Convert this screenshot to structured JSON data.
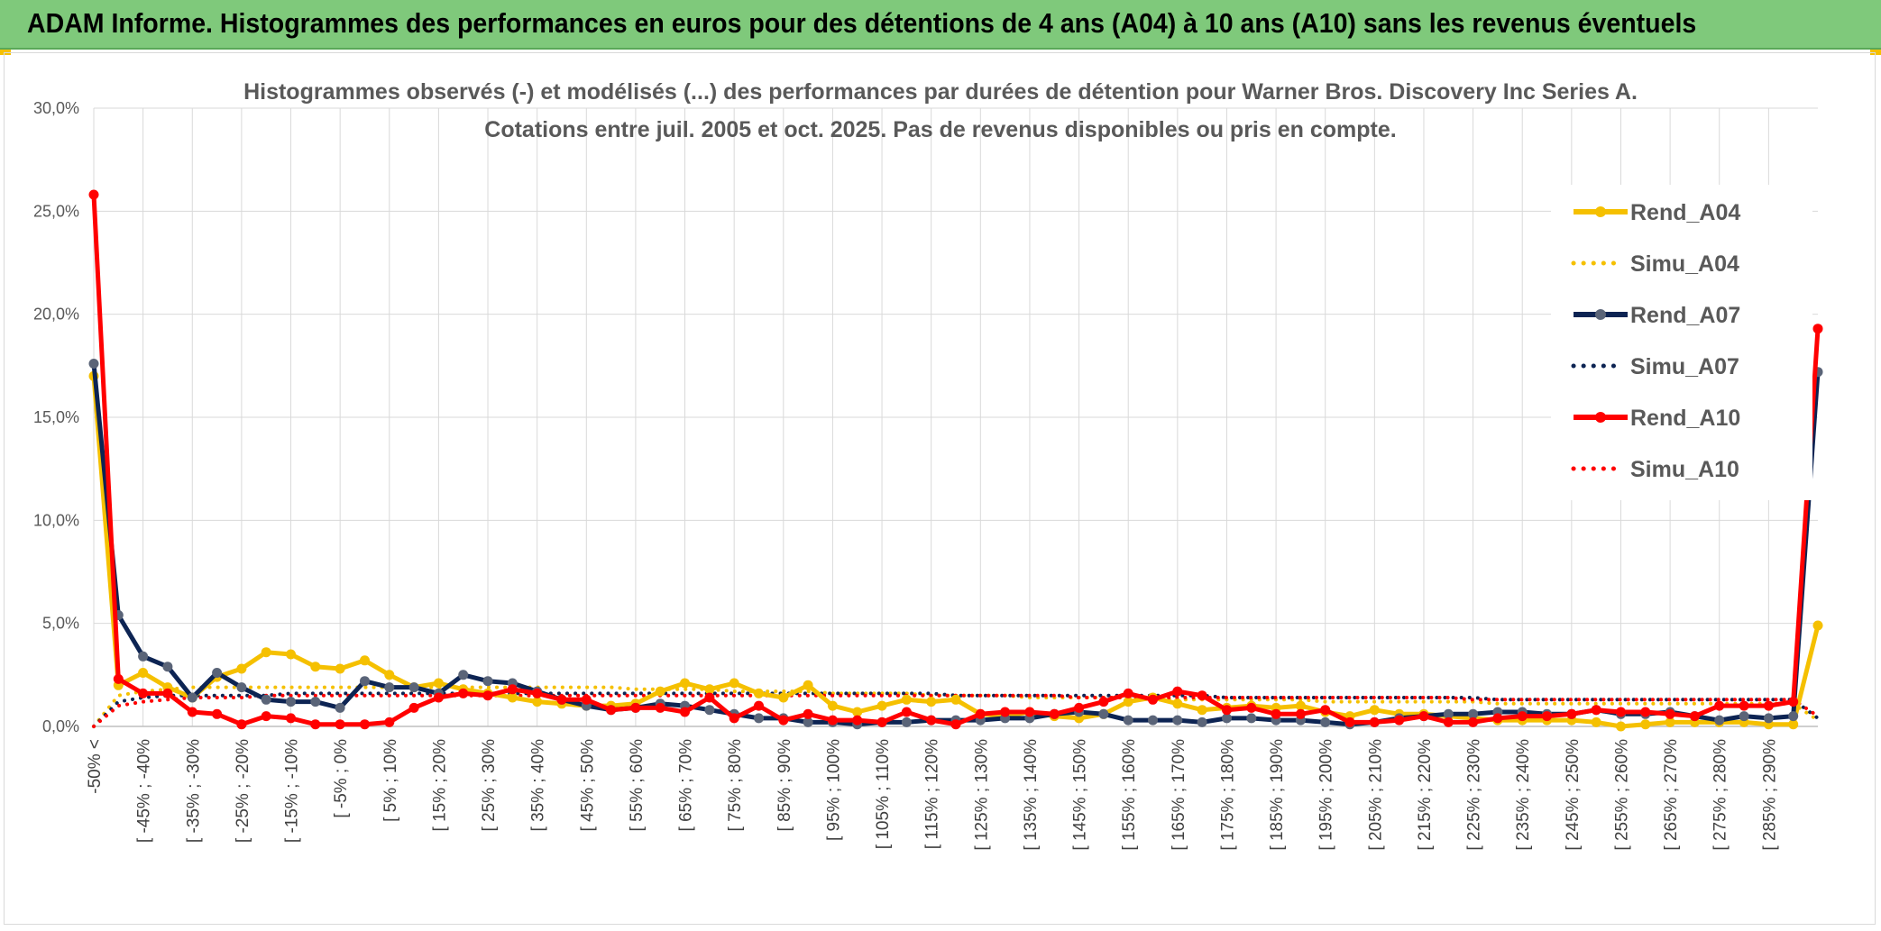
{
  "header": {
    "title": "ADAM Informe. Histogrammes des performances en euros pour des détentions de 4 ans (A04) à 10 ans (A10) sans les revenus éventuels"
  },
  "chart_data": {
    "type": "line",
    "title_line1": "Histogrammes observés (-) et modélisés (...) des performances par durées de détention pour Warner Bros. Discovery Inc Series A.",
    "title_line2": "Cotations entre juil. 2005 et oct. 2025. Pas de revenus disponibles ou pris en compte.",
    "ylim": [
      0,
      30
    ],
    "y_ticks": [
      "0,0%",
      "5,0%",
      "10,0%",
      "15,0%",
      "20,0%",
      "25,0%",
      "30,0%"
    ],
    "x_tick_labels": [
      "-50% <",
      "[ -45% ; -40%",
      "[ -35% ; -30%",
      "[ -25% ; -20%",
      "[ -15% ; -10%",
      "[ -5% ; 0%",
      "[ 5% ; 10%",
      "[ 15% ; 20%",
      "[ 25% ; 30%",
      "[ 35% ; 40%",
      "[ 45% ; 50%",
      "[ 55% ; 60%",
      "[ 65% ; 70%",
      "[ 75% ; 80%",
      "[ 85% ; 90%",
      "[ 95% ; 100%",
      "[ 105% ; 110%",
      "[ 115% ; 120%",
      "[ 125% ; 130%",
      "[ 135% ; 140%",
      "[ 145% ; 150%",
      "[ 155% ; 160%",
      "[ 165% ; 170%",
      "[ 175% ; 180%",
      "[ 185% ; 190%",
      "[ 195% ; 200%",
      "[ 205% ; 210%",
      "[ 215% ; 220%",
      "[ 225% ; 230%",
      "[ 235% ; 240%",
      "[ 245% ; 250%",
      "[ 255% ; 260%",
      "[ 265% ; 270%",
      "[ 275% ; 280%",
      "[ 285% ; 290%"
    ],
    "grid": true,
    "legend_position": "right",
    "series": [
      {
        "name": "Rend_A04",
        "style": "solid",
        "color": "#f5c000",
        "values": [
          17.0,
          2.0,
          2.6,
          1.9,
          1.4,
          2.4,
          2.8,
          3.6,
          3.5,
          2.9,
          2.8,
          3.2,
          2.5,
          1.9,
          2.1,
          1.8,
          1.6,
          1.4,
          1.2,
          1.1,
          1.0,
          1.0,
          1.1,
          1.7,
          2.1,
          1.8,
          2.1,
          1.6,
          1.4,
          2.0,
          1.0,
          0.7,
          1.0,
          1.3,
          1.2,
          1.3,
          0.6,
          0.5,
          0.7,
          0.5,
          0.4,
          0.6,
          1.2,
          1.4,
          1.1,
          0.8,
          0.9,
          1.0,
          0.9,
          1.0,
          0.7,
          0.5,
          0.8,
          0.6,
          0.6,
          0.5,
          0.4,
          0.3,
          0.3,
          0.3,
          0.3,
          0.2,
          0.0,
          0.1,
          0.2,
          0.2,
          0.2,
          0.2,
          0.1,
          0.1,
          4.9
        ]
      },
      {
        "name": "Simu_A04",
        "style": "dotted",
        "color": "#f5c000",
        "values": [
          0.0,
          1.5,
          1.7,
          1.8,
          1.9,
          1.9,
          1.9,
          1.9,
          1.9,
          1.9,
          1.9,
          1.9,
          1.9,
          1.9,
          1.9,
          1.9,
          1.9,
          1.9,
          1.9,
          1.9,
          1.9,
          1.9,
          1.8,
          1.8,
          1.8,
          1.8,
          1.7,
          1.7,
          1.7,
          1.7,
          1.6,
          1.6,
          1.6,
          1.6,
          1.5,
          1.5,
          1.5,
          1.5,
          1.4,
          1.4,
          1.4,
          1.4,
          1.4,
          1.3,
          1.3,
          1.3,
          1.3,
          1.3,
          1.3,
          1.3,
          1.2,
          1.2,
          1.2,
          1.2,
          1.2,
          1.2,
          1.2,
          1.1,
          1.1,
          1.1,
          1.1,
          1.1,
          1.1,
          1.1,
          1.1,
          1.1,
          1.1,
          1.1,
          1.1,
          1.1,
          0.3
        ]
      },
      {
        "name": "Rend_A07",
        "style": "solid",
        "color": "#0d2453",
        "values": [
          17.6,
          5.4,
          3.4,
          2.9,
          1.4,
          2.6,
          1.9,
          1.3,
          1.2,
          1.2,
          0.9,
          2.2,
          1.9,
          1.9,
          1.6,
          2.5,
          2.2,
          2.1,
          1.7,
          1.3,
          1.0,
          0.8,
          0.9,
          1.1,
          1.0,
          0.8,
          0.6,
          0.4,
          0.4,
          0.2,
          0.2,
          0.1,
          0.2,
          0.2,
          0.3,
          0.3,
          0.3,
          0.4,
          0.4,
          0.6,
          0.7,
          0.6,
          0.3,
          0.3,
          0.3,
          0.2,
          0.4,
          0.4,
          0.3,
          0.3,
          0.2,
          0.1,
          0.2,
          0.4,
          0.5,
          0.6,
          0.6,
          0.7,
          0.7,
          0.6,
          0.6,
          0.8,
          0.6,
          0.6,
          0.7,
          0.5,
          0.3,
          0.5,
          0.4,
          0.5,
          17.2
        ]
      },
      {
        "name": "Simu_A07",
        "style": "dotted",
        "color": "#0d2453",
        "values": [
          0.0,
          1.2,
          1.4,
          1.5,
          1.5,
          1.5,
          1.5,
          1.5,
          1.6,
          1.6,
          1.6,
          1.6,
          1.6,
          1.6,
          1.6,
          1.6,
          1.6,
          1.6,
          1.6,
          1.6,
          1.6,
          1.6,
          1.6,
          1.6,
          1.6,
          1.6,
          1.6,
          1.6,
          1.6,
          1.6,
          1.6,
          1.6,
          1.6,
          1.6,
          1.6,
          1.5,
          1.5,
          1.5,
          1.5,
          1.5,
          1.5,
          1.5,
          1.5,
          1.5,
          1.5,
          1.5,
          1.4,
          1.4,
          1.4,
          1.4,
          1.4,
          1.4,
          1.4,
          1.4,
          1.4,
          1.4,
          1.4,
          1.3,
          1.3,
          1.3,
          1.3,
          1.3,
          1.3,
          1.3,
          1.3,
          1.3,
          1.3,
          1.3,
          1.3,
          1.3,
          0.4
        ]
      },
      {
        "name": "Rend_A10",
        "style": "solid",
        "color": "#ff0000",
        "values": [
          25.8,
          2.3,
          1.6,
          1.6,
          0.7,
          0.6,
          0.1,
          0.5,
          0.4,
          0.1,
          0.1,
          0.1,
          0.2,
          0.9,
          1.4,
          1.6,
          1.5,
          1.8,
          1.6,
          1.3,
          1.3,
          0.8,
          0.9,
          0.9,
          0.7,
          1.4,
          0.4,
          1.0,
          0.3,
          0.6,
          0.3,
          0.3,
          0.2,
          0.7,
          0.3,
          0.1,
          0.6,
          0.7,
          0.7,
          0.6,
          0.9,
          1.2,
          1.6,
          1.3,
          1.7,
          1.5,
          0.8,
          0.9,
          0.6,
          0.6,
          0.8,
          0.2,
          0.2,
          0.3,
          0.5,
          0.2,
          0.2,
          0.4,
          0.5,
          0.5,
          0.6,
          0.8,
          0.7,
          0.7,
          0.6,
          0.5,
          1.0,
          1.0,
          1.0,
          1.2,
          19.3
        ]
      },
      {
        "name": "Simu_A10",
        "style": "dotted",
        "color": "#ff0000",
        "values": [
          0.0,
          1.0,
          1.2,
          1.3,
          1.4,
          1.4,
          1.4,
          1.5,
          1.5,
          1.5,
          1.5,
          1.5,
          1.5,
          1.5,
          1.5,
          1.5,
          1.5,
          1.5,
          1.5,
          1.5,
          1.5,
          1.5,
          1.5,
          1.5,
          1.5,
          1.5,
          1.5,
          1.5,
          1.5,
          1.5,
          1.5,
          1.5,
          1.5,
          1.5,
          1.5,
          1.5,
          1.5,
          1.5,
          1.5,
          1.5,
          1.4,
          1.4,
          1.4,
          1.4,
          1.4,
          1.4,
          1.4,
          1.4,
          1.4,
          1.4,
          1.4,
          1.4,
          1.4,
          1.4,
          1.4,
          1.4,
          1.3,
          1.3,
          1.3,
          1.3,
          1.3,
          1.3,
          1.3,
          1.3,
          1.3,
          1.3,
          1.3,
          1.3,
          1.3,
          1.3,
          0.5
        ]
      }
    ]
  }
}
